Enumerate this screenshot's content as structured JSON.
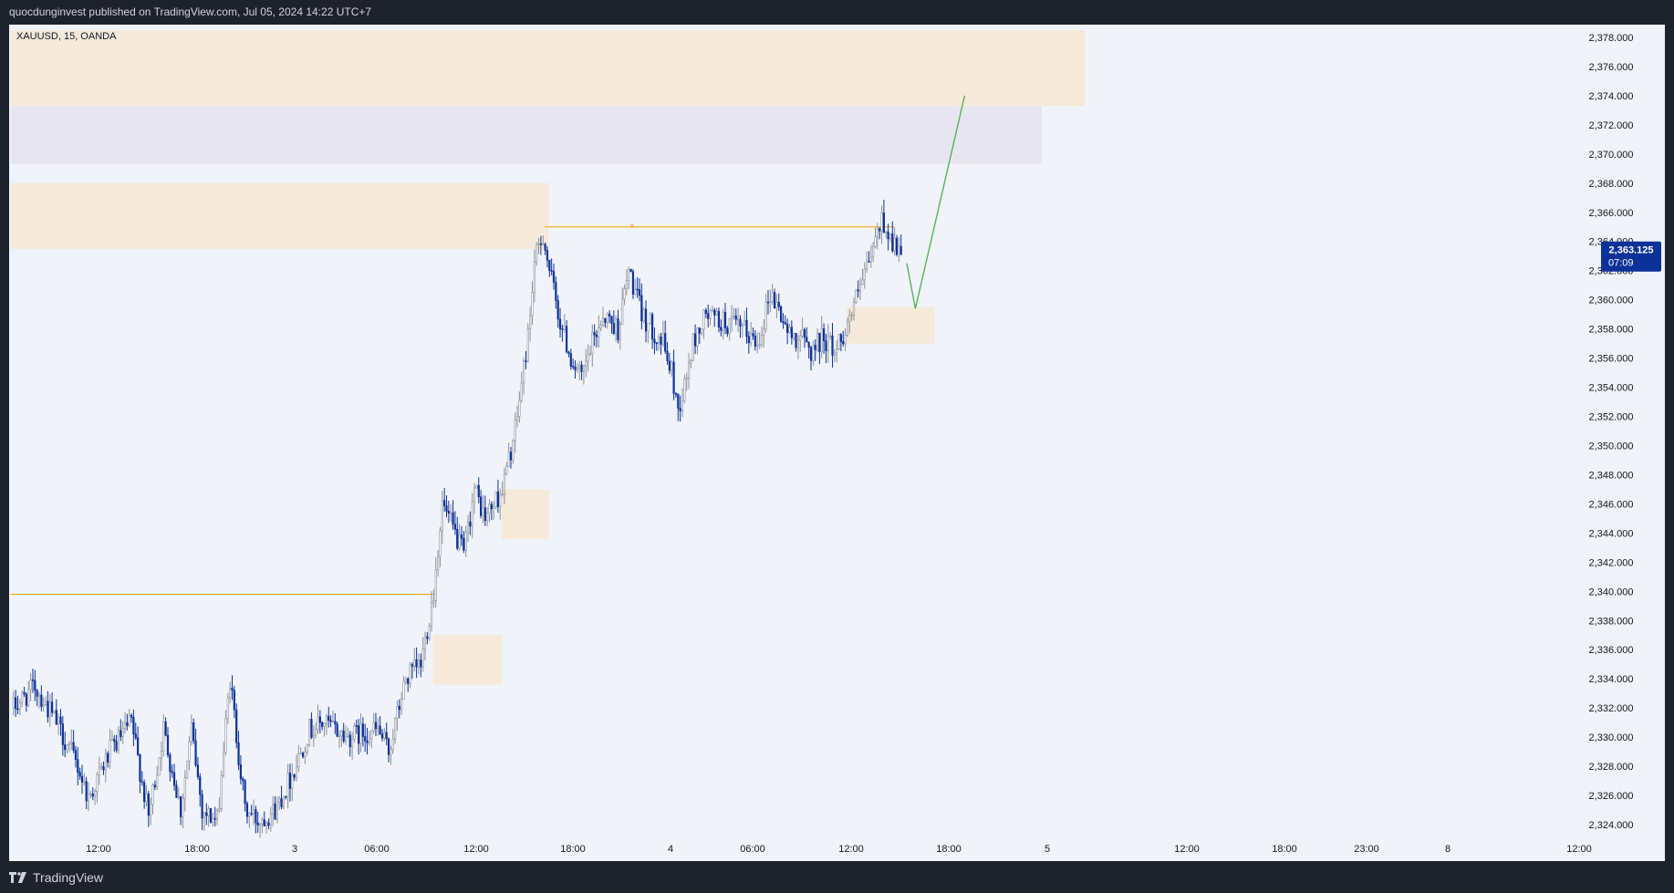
{
  "header": {
    "published_text": "quocdunginvest published on TradingView.com, Jul 05, 2024 14:22 UTC+7"
  },
  "symbol": {
    "label": "XAUUSD, 15, OANDA"
  },
  "price_badge": {
    "price": "2,363.125",
    "countdown": "07:09",
    "color": "#0c3299"
  },
  "footer": {
    "brand": "TradingView"
  },
  "colors": {
    "bull": "#8c9197",
    "bear": "#0c3299",
    "zone_orange": "#f5e9d9",
    "zone_purple": "#e7e6f0",
    "hline": "#f59f00",
    "arrow": "#4caf50"
  },
  "chart_data": {
    "type": "candlestick",
    "timeframe": "15",
    "y_ticks": [
      "2,378.000",
      "2,376.000",
      "2,374.000",
      "2,372.000",
      "2,370.000",
      "2,368.000",
      "2,366.000",
      "2,364.000",
      "2,362.000",
      "2,360.000",
      "2,358.000",
      "2,356.000",
      "2,354.000",
      "2,352.000",
      "2,350.000",
      "2,348.000",
      "2,346.000",
      "2,344.000",
      "2,342.000",
      "2,340.000",
      "2,338.000",
      "2,336.000",
      "2,334.000",
      "2,332.000",
      "2,330.000",
      "2,328.000",
      "2,326.000",
      "2,324.000"
    ],
    "x_ticks": [
      "12:00",
      "18:00",
      "3",
      "06:00",
      "12:00",
      "18:00",
      "4",
      "06:00",
      "12:00",
      "18:00",
      "5",
      "12:00",
      "18:00",
      "23:00",
      "8",
      "12:00"
    ],
    "ylim": [
      2323.2,
      2379.8
    ],
    "last_price": 2363.125,
    "anchor_points": [
      [
        0,
        2332.0
      ],
      [
        10,
        2333.5
      ],
      [
        20,
        2331.0
      ],
      [
        30,
        2328.0
      ],
      [
        35,
        2325.8
      ],
      [
        45,
        2329.0
      ],
      [
        55,
        2331.0
      ],
      [
        63,
        2324.5
      ],
      [
        70,
        2330.5
      ],
      [
        78,
        2325.0
      ],
      [
        83,
        2330.5
      ],
      [
        88,
        2325.0
      ],
      [
        95,
        2324.2
      ],
      [
        101,
        2334.0
      ],
      [
        108,
        2325.0
      ],
      [
        114,
        2324.3
      ],
      [
        122,
        2325.0
      ],
      [
        130,
        2327.5
      ],
      [
        138,
        2330.5
      ],
      [
        145,
        2331.0
      ],
      [
        155,
        2330.0
      ],
      [
        170,
        2330.5
      ],
      [
        175,
        2329.0
      ],
      [
        183,
        2334.0
      ],
      [
        190,
        2335.0
      ],
      [
        196,
        2340.0
      ],
      [
        200,
        2346.0
      ],
      [
        210,
        2342.5
      ],
      [
        215,
        2347.0
      ],
      [
        220,
        2345.0
      ],
      [
        228,
        2347.0
      ],
      [
        234,
        2351.0
      ],
      [
        240,
        2357.5
      ],
      [
        243,
        2362.5
      ],
      [
        247,
        2364.5
      ],
      [
        250,
        2362.0
      ],
      [
        255,
        2358.5
      ],
      [
        260,
        2356.0
      ],
      [
        265,
        2354.5
      ],
      [
        270,
        2357.0
      ],
      [
        275,
        2359.0
      ],
      [
        282,
        2358.0
      ],
      [
        287,
        2362.0
      ],
      [
        293,
        2359.0
      ],
      [
        298,
        2358.0
      ],
      [
        303,
        2357.0
      ],
      [
        307,
        2355.0
      ],
      [
        310,
        2352.5
      ],
      [
        313,
        2354.0
      ],
      [
        317,
        2357.0
      ],
      [
        323,
        2359.0
      ],
      [
        330,
        2358.5
      ],
      [
        340,
        2358.0
      ],
      [
        347,
        2357.0
      ],
      [
        353,
        2360.5
      ],
      [
        358,
        2359.0
      ],
      [
        362,
        2357.5
      ],
      [
        367,
        2357.5
      ],
      [
        372,
        2356.5
      ],
      [
        378,
        2357.5
      ],
      [
        383,
        2356.5
      ],
      [
        388,
        2358.0
      ],
      [
        393,
        2360.0
      ],
      [
        398,
        2362.0
      ],
      [
        402,
        2364.0
      ],
      [
        405,
        2365.5
      ],
      [
        410,
        2364.0
      ],
      [
        414,
        2363.1
      ]
    ],
    "highlight_levels": [
      {
        "price": 2365.0,
        "from_bar": 248,
        "to_bar": 411,
        "color": "#f59f00"
      },
      {
        "price": 2339.8,
        "from_bar": -1,
        "to_bar": 196,
        "color": "#f59f00"
      }
    ],
    "zones": [
      {
        "from_bar": -1,
        "to_bar": 500,
        "top": 2378.5,
        "bottom": 2373.3,
        "color": "orange"
      },
      {
        "from_bar": -1,
        "to_bar": 480,
        "top": 2373.3,
        "bottom": 2369.3,
        "color": "purple"
      },
      {
        "from_bar": -1,
        "to_bar": 250,
        "top": 2368.0,
        "bottom": 2363.5,
        "color": "orange"
      },
      {
        "from_bar": 228,
        "to_bar": 250,
        "top": 2347.0,
        "bottom": 2343.6,
        "color": "orange"
      },
      {
        "from_bar": 196,
        "to_bar": 228,
        "top": 2337.0,
        "bottom": 2333.6,
        "color": "orange"
      },
      {
        "from_bar": 389,
        "to_bar": 430,
        "top": 2359.5,
        "bottom": 2357.0,
        "color": "orange"
      }
    ],
    "projection": [
      {
        "bar": 417,
        "price": 2362.5
      },
      {
        "bar": 421,
        "price": 2359.4
      },
      {
        "bar": 444,
        "price": 2374.0
      }
    ]
  }
}
